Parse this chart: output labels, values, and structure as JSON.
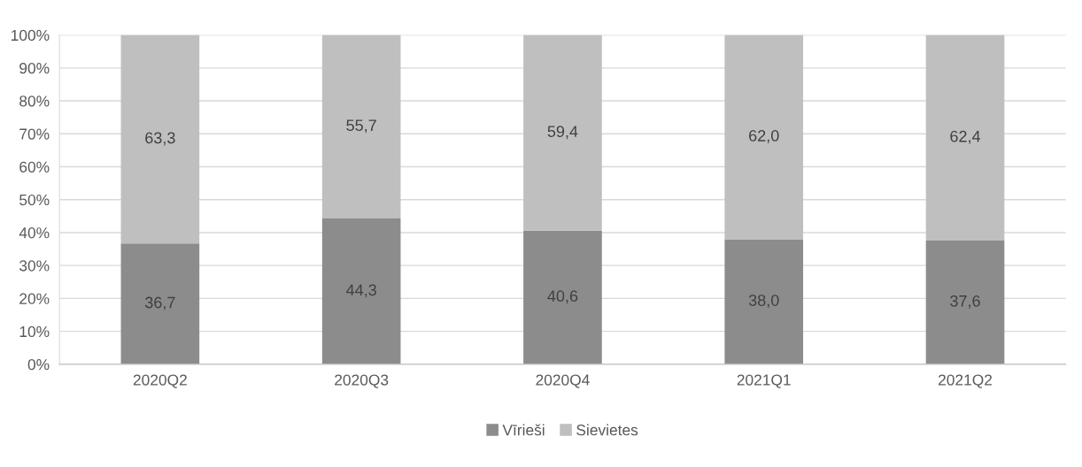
{
  "chart_data": {
    "type": "bar",
    "stacked": true,
    "categories": [
      "2020Q2",
      "2020Q3",
      "2020Q4",
      "2021Q1",
      "2021Q2"
    ],
    "series": [
      {
        "name": "Vīrieši",
        "color": "#8c8c8c",
        "values": [
          36.7,
          44.3,
          40.6,
          38.0,
          37.6
        ],
        "value_labels": [
          "36,7",
          "44,3",
          "40,6",
          "38,0",
          "37,6"
        ]
      },
      {
        "name": "Sievietes",
        "color": "#bfbfbf",
        "values": [
          63.3,
          55.7,
          59.4,
          62.0,
          62.4
        ],
        "value_labels": [
          "63,3",
          "55,7",
          "59,4",
          "62,0",
          "62,4"
        ]
      }
    ],
    "ylim": [
      0,
      100
    ],
    "yticks": [
      {
        "value": 0,
        "label": "0%"
      },
      {
        "value": 10,
        "label": "10%"
      },
      {
        "value": 20,
        "label": "20%"
      },
      {
        "value": 30,
        "label": "30%"
      },
      {
        "value": 40,
        "label": "40%"
      },
      {
        "value": 50,
        "label": "50%"
      },
      {
        "value": 60,
        "label": "60%"
      },
      {
        "value": 70,
        "label": "70%"
      },
      {
        "value": 80,
        "label": "80%"
      },
      {
        "value": 90,
        "label": "90%"
      },
      {
        "value": 100,
        "label": "100%"
      }
    ],
    "grid": "y",
    "legend": "bottom"
  }
}
